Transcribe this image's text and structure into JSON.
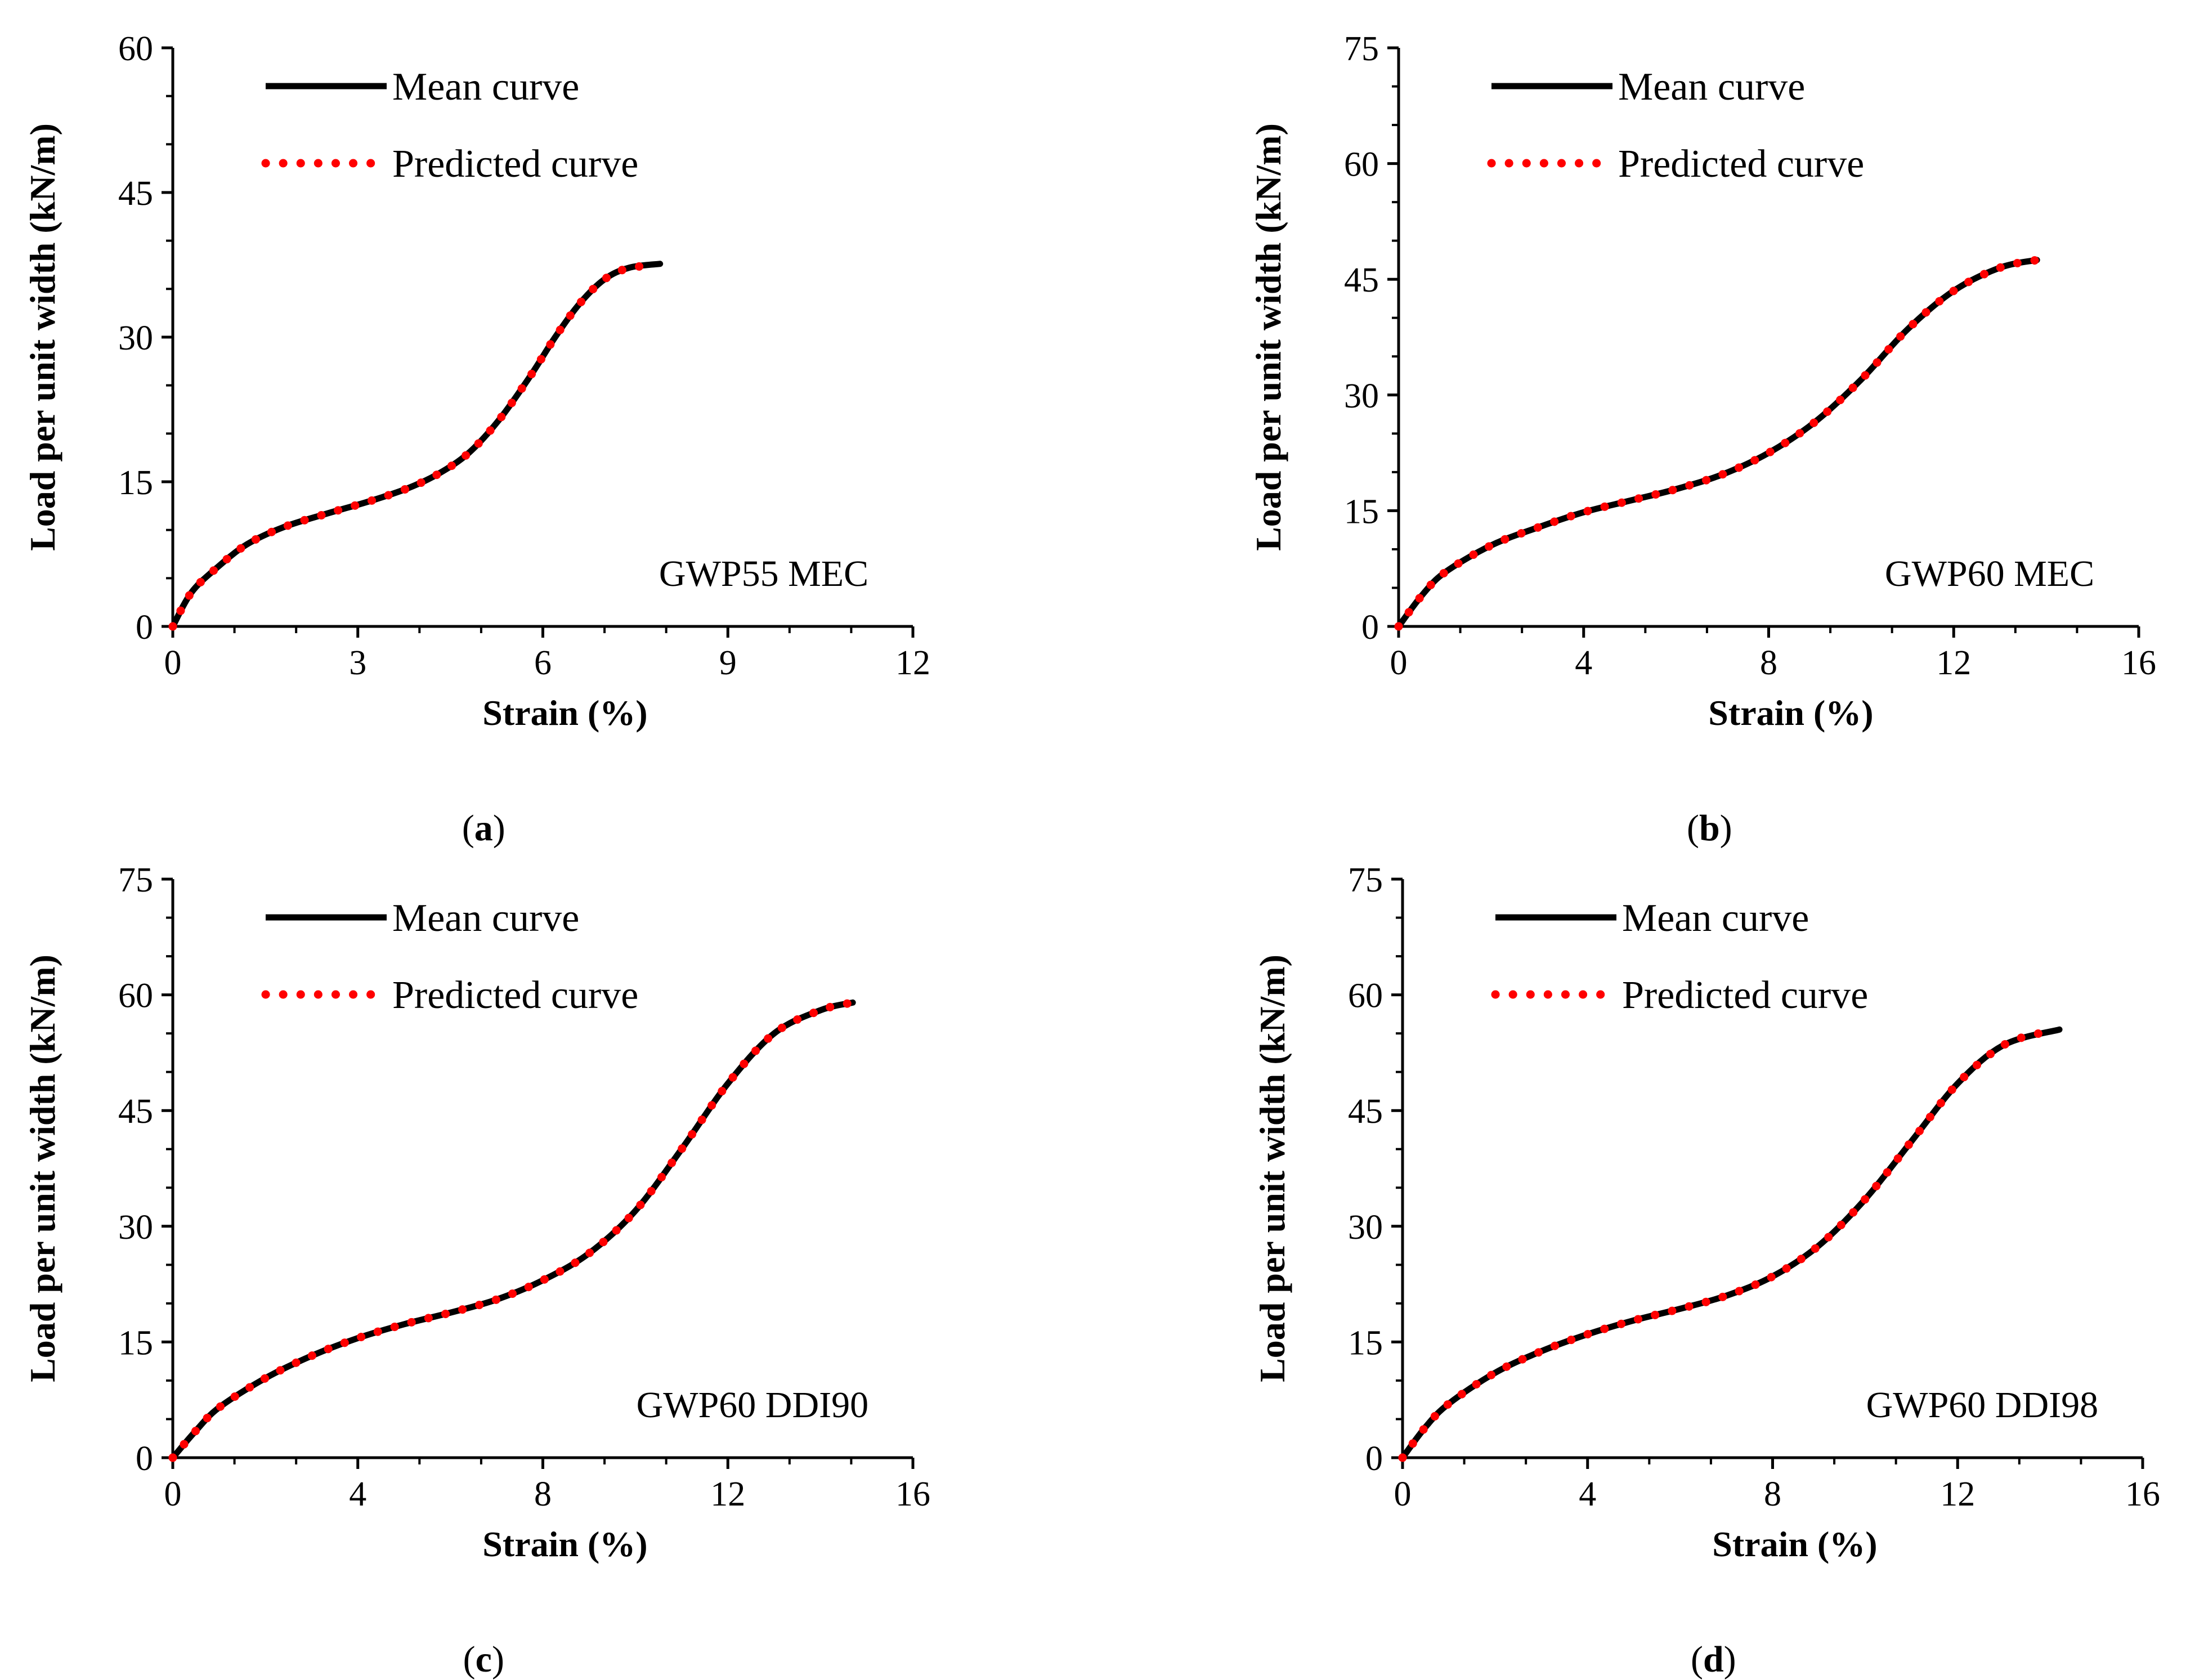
{
  "chart_data": [
    {
      "type": "line",
      "panel_label": "a",
      "annotation": "GWP55 MEC",
      "xlabel": "Strain (%)",
      "ylabel": "Load per unit width (kN/m)",
      "xlim": [
        0,
        12
      ],
      "ylim": [
        0,
        60
      ],
      "xticks": [
        0,
        3,
        6,
        9,
        12
      ],
      "yticks": [
        0,
        15,
        30,
        45,
        60
      ],
      "legend": "top-left",
      "series": [
        {
          "name": "Mean curve",
          "color": "#000000",
          "style": "solid",
          "x": [
            0,
            0.3,
            0.7,
            1.2,
            1.8,
            2.5,
            3.2,
            3.8,
            4.3,
            4.8,
            5.3,
            5.8,
            6.2,
            6.6,
            7.0,
            7.4,
            7.9
          ],
          "y": [
            0,
            3.5,
            6,
            8.5,
            10.3,
            11.7,
            13,
            14.3,
            15.8,
            18,
            21.5,
            26,
            30,
            33.5,
            36,
            37.2,
            37.6
          ]
        },
        {
          "name": "Predicted curve",
          "color": "#ff0000",
          "style": "dotted",
          "x": [
            0,
            0.3,
            0.7,
            1.2,
            1.8,
            2.5,
            3.2,
            3.8,
            4.3,
            4.8,
            5.3,
            5.8,
            6.2,
            6.6,
            7.0,
            7.4,
            7.7
          ],
          "y": [
            0,
            3.5,
            6,
            8.5,
            10.3,
            11.7,
            13,
            14.3,
            15.8,
            18,
            21.5,
            26,
            30,
            33.5,
            36,
            37.2,
            37.3
          ]
        }
      ]
    },
    {
      "type": "line",
      "panel_label": "b",
      "annotation": "GWP60 MEC",
      "xlabel": "Strain (%)",
      "ylabel": "Load per unit width (kN/m)",
      "xlim": [
        0,
        16
      ],
      "ylim": [
        0,
        75
      ],
      "xticks": [
        0,
        4,
        8,
        12,
        16
      ],
      "yticks": [
        0,
        15,
        30,
        45,
        60,
        75
      ],
      "legend": "top-left",
      "series": [
        {
          "name": "Mean curve",
          "color": "#000000",
          "style": "solid",
          "x": [
            0,
            0.5,
            1.0,
            2.0,
            3.0,
            4.0,
            5.0,
            6.0,
            7.0,
            8.0,
            9.0,
            10.0,
            11.0,
            12.0,
            13.0,
            13.8
          ],
          "y": [
            0,
            4,
            7,
            10.5,
            12.8,
            14.8,
            16.3,
            17.8,
            19.7,
            22.5,
            26.5,
            32,
            38.5,
            43.5,
            46.5,
            47.5
          ]
        },
        {
          "name": "Predicted curve",
          "color": "#ff0000",
          "style": "dotted",
          "x": [
            0,
            0.5,
            1.0,
            2.0,
            3.0,
            4.0,
            5.0,
            6.0,
            7.0,
            8.0,
            9.0,
            10.0,
            11.0,
            12.0,
            13.0,
            13.8
          ],
          "y": [
            0,
            4,
            7,
            10.5,
            12.8,
            14.8,
            16.3,
            17.8,
            19.7,
            22.5,
            26.5,
            32,
            38.5,
            43.5,
            46.5,
            47.5
          ]
        }
      ]
    },
    {
      "type": "line",
      "panel_label": "c",
      "annotation": "GWP60 DDI90",
      "xlabel": "Strain (%)",
      "ylabel": "Load per unit width (kN/m)",
      "xlim": [
        0,
        16
      ],
      "ylim": [
        0,
        75
      ],
      "xticks": [
        0,
        4,
        8,
        12,
        16
      ],
      "yticks": [
        0,
        15,
        30,
        45,
        60,
        75
      ],
      "legend": "top-left",
      "series": [
        {
          "name": "Mean curve",
          "color": "#000000",
          "style": "solid",
          "x": [
            0,
            0.5,
            1.0,
            2.0,
            3.0,
            4.0,
            5.0,
            6.0,
            7.0,
            8.0,
            9.0,
            10.0,
            11.0,
            12.0,
            13.0,
            14.0,
            14.7
          ],
          "y": [
            0,
            3.5,
            6.5,
            10.3,
            13.2,
            15.5,
            17.3,
            18.8,
            20.5,
            23,
            26.5,
            32,
            40,
            48.5,
            55,
            58,
            59
          ]
        },
        {
          "name": "Predicted curve",
          "color": "#ff0000",
          "style": "dotted",
          "x": [
            0,
            0.5,
            1.0,
            2.0,
            3.0,
            4.0,
            5.0,
            6.0,
            7.0,
            8.0,
            9.0,
            10.0,
            11.0,
            12.0,
            13.0,
            14.0,
            14.7
          ],
          "y": [
            0,
            3.5,
            6.5,
            10.3,
            13.2,
            15.5,
            17.3,
            18.8,
            20.5,
            23,
            26.5,
            32,
            40,
            48.5,
            55,
            58,
            59
          ]
        }
      ]
    },
    {
      "type": "line",
      "panel_label": "d",
      "annotation": "GWP60 DDI98",
      "xlabel": "Strain (%)",
      "ylabel": "Load per unit width (kN/m)",
      "xlim": [
        0,
        16
      ],
      "ylim": [
        0,
        75
      ],
      "xticks": [
        0,
        4,
        8,
        12,
        16
      ],
      "yticks": [
        0,
        15,
        30,
        45,
        60,
        75
      ],
      "legend": "top-left",
      "series": [
        {
          "name": "Mean curve",
          "color": "#000000",
          "style": "solid",
          "x": [
            0,
            0.5,
            1.0,
            2.0,
            3.0,
            4.0,
            5.0,
            6.0,
            7.0,
            8.0,
            9.0,
            10.0,
            11.0,
            12.0,
            13.0,
            14.2
          ],
          "y": [
            0,
            4,
            7,
            11,
            13.8,
            16,
            17.8,
            19.3,
            21,
            23.5,
            27.5,
            33.5,
            41,
            48.5,
            53.5,
            55.5
          ]
        },
        {
          "name": "Predicted curve",
          "color": "#ff0000",
          "style": "dotted",
          "x": [
            0,
            0.5,
            1.0,
            2.0,
            3.0,
            4.0,
            5.0,
            6.0,
            7.0,
            8.0,
            9.0,
            10.0,
            11.0,
            12.0,
            13.0,
            13.9
          ],
          "y": [
            0,
            4,
            7,
            11,
            13.8,
            16,
            17.8,
            19.3,
            21,
            23.5,
            27.5,
            33.5,
            41,
            48.5,
            53.5,
            55.2
          ]
        }
      ]
    }
  ]
}
